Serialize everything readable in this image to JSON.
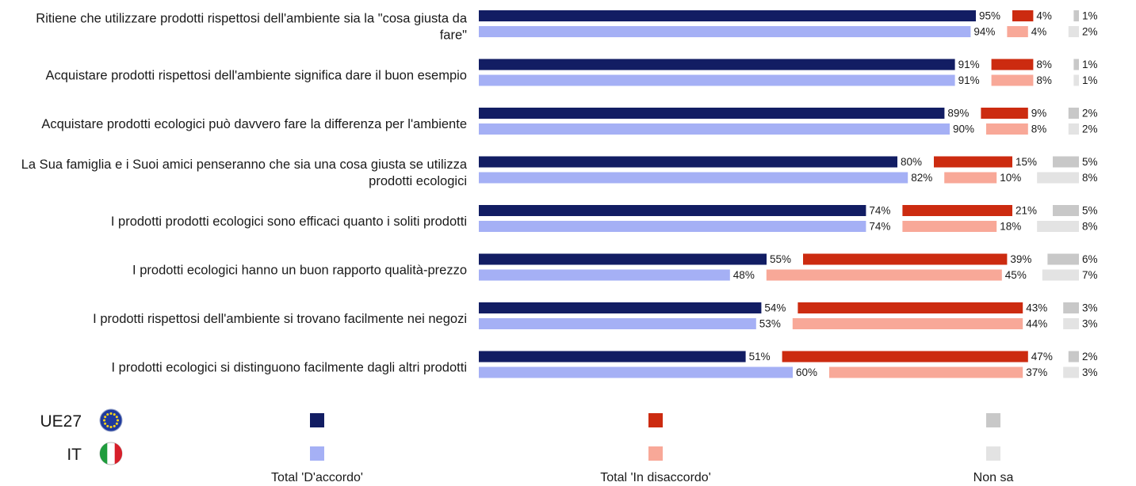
{
  "chart_data": {
    "type": "bar",
    "orientation": "horizontal-stacked",
    "categories": [
      [
        "Ritiene che utilizzare prodotti rispettosi dell'ambiente sia la \"cosa giusta da",
        "fare\""
      ],
      [
        "Acquistare prodotti rispettosi dell'ambiente  significa dare il buon esempio"
      ],
      [
        "Acquistare prodotti ecologici può davvero fare la differenza per l'ambiente"
      ],
      [
        "La Sua famiglia e i Suoi amici penseranno che sia una cosa giusta se utilizza",
        "prodotti ecologici"
      ],
      [
        "I prodotti prodotti ecologici sono efficaci quanto i soliti prodotti"
      ],
      [
        "I prodotti ecologici hanno un buon rapporto qualità-prezzo"
      ],
      [
        "I prodotti rispettosi dell'ambiente si trovano facilmente nei negozi"
      ],
      [
        "I prodotti ecologici si distinguono facilmente dagli altri prodotti"
      ]
    ],
    "series": [
      {
        "name": "Total 'D'accordo'",
        "country": "UE27",
        "color": "#121d63",
        "values": [
          95,
          91,
          89,
          80,
          74,
          55,
          54,
          51
        ]
      },
      {
        "name": "Total 'D'accordo'",
        "country": "IT",
        "color": "#a5b0f5",
        "values": [
          94,
          91,
          90,
          82,
          74,
          48,
          53,
          60
        ]
      },
      {
        "name": "Total 'In disaccordo'",
        "country": "UE27",
        "color": "#cc2b10",
        "values": [
          4,
          8,
          9,
          15,
          21,
          39,
          43,
          47
        ]
      },
      {
        "name": "Total 'In disaccordo'",
        "country": "IT",
        "color": "#f8a898",
        "values": [
          4,
          8,
          8,
          10,
          18,
          45,
          44,
          37
        ]
      },
      {
        "name": "Non sa",
        "country": "UE27",
        "color": "#c8c8c8",
        "values": [
          1,
          1,
          2,
          5,
          5,
          6,
          3,
          2
        ]
      },
      {
        "name": "Non sa",
        "country": "IT",
        "color": "#e3e3e3",
        "values": [
          2,
          1,
          2,
          8,
          8,
          7,
          3,
          3
        ]
      }
    ],
    "value_suffix": "%",
    "legend": {
      "countries": [
        "UE27",
        "IT"
      ],
      "groups": [
        "Total 'D'accordo'",
        "Total 'In disaccordo'",
        "Non sa"
      ],
      "placement": "bottom"
    }
  }
}
